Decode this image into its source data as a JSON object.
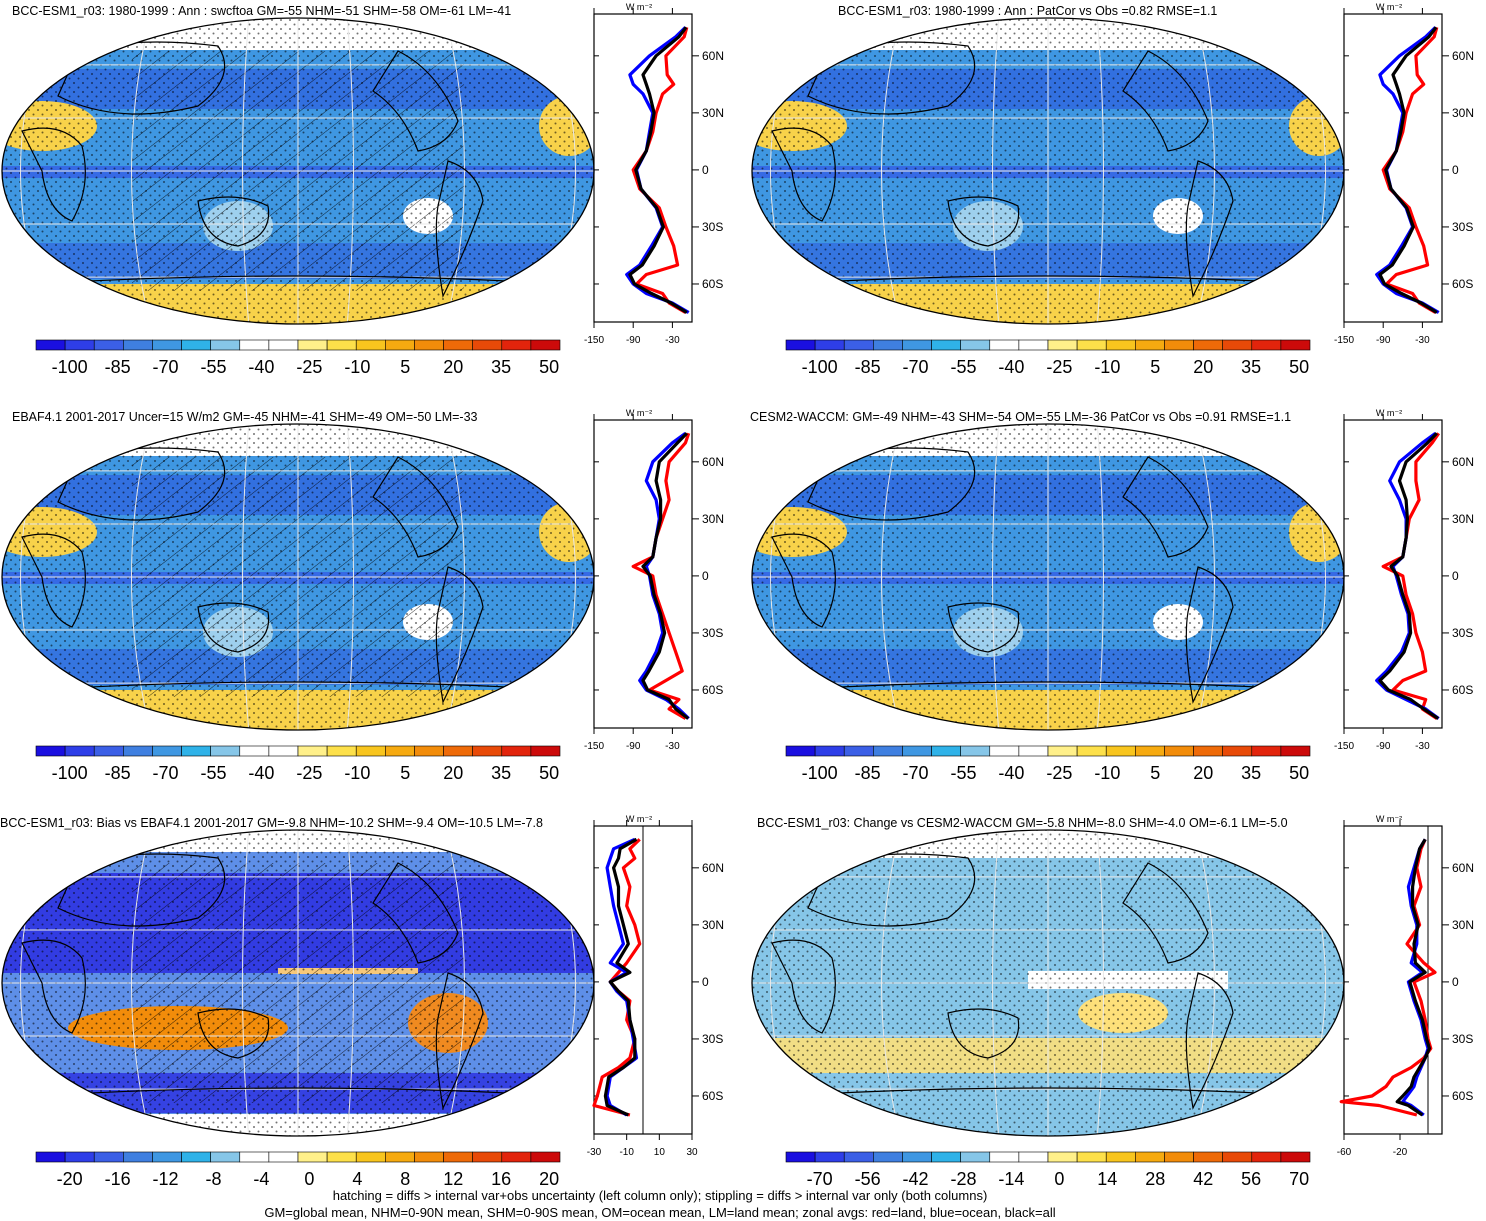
{
  "figure": {
    "footer": [
      "hatching = diffs > internal var+obs uncertainty (left column only); stippling = diffs > internal var only (both columns)",
      "GM=global mean, NHM=0-90N mean, SHM=0-90S mean, OM=ocean mean, LM=land mean; zonal avgs: red=land, blue=ocean, black=all"
    ],
    "lat_ticks": [
      "60N",
      "30N",
      "0",
      "30S",
      "60S"
    ],
    "zonal_units": "W m⁻²"
  },
  "chart_data": [
    {
      "type": "heatmap",
      "title": "BCC-ESM1_r03: 1980-1999 : Ann : swcftoa GM=-55 NHM=-51 SHM=-58 OM=-61 LM=-41",
      "colorbar_labels": [
        "-100",
        "-85",
        "-70",
        "-55",
        "-40",
        "-25",
        "-10",
        "5",
        "20",
        "35",
        "50"
      ],
      "colorbar_scheme": "abs",
      "hatching": true,
      "zonal_xticks": [
        "-150",
        "-90",
        "-30"
      ],
      "zonal_xlim": [
        -150,
        0
      ],
      "series": [
        {
          "name": "land",
          "color": "#ff0000",
          "lat": [
            75,
            70,
            60,
            50,
            45,
            40,
            30,
            20,
            10,
            0,
            -10,
            -20,
            -30,
            -40,
            -50,
            -55,
            -60,
            -65,
            -70,
            -75
          ],
          "values": [
            -8,
            -12,
            -40,
            -38,
            -28,
            -45,
            -55,
            -60,
            -70,
            -90,
            -80,
            -50,
            -40,
            -28,
            -22,
            -70,
            -85,
            -45,
            -35,
            -10
          ]
        },
        {
          "name": "ocean",
          "color": "#0000ff",
          "lat": [
            75,
            70,
            60,
            50,
            45,
            40,
            30,
            20,
            10,
            0,
            -10,
            -20,
            -30,
            -40,
            -50,
            -55,
            -60,
            -65,
            -70,
            -75
          ],
          "values": [
            -10,
            -25,
            -65,
            -95,
            -90,
            -75,
            -60,
            -65,
            -70,
            -85,
            -78,
            -55,
            -45,
            -62,
            -80,
            -100,
            -90,
            -70,
            -30,
            -5
          ]
        },
        {
          "name": "all",
          "color": "#000000",
          "lat": [
            75,
            70,
            60,
            50,
            45,
            40,
            30,
            20,
            10,
            0,
            -10,
            -20,
            -30,
            -40,
            -50,
            -55,
            -60,
            -65,
            -70,
            -75
          ],
          "values": [
            -9,
            -20,
            -55,
            -75,
            -70,
            -65,
            -58,
            -63,
            -70,
            -86,
            -78,
            -54,
            -44,
            -58,
            -76,
            -95,
            -88,
            -62,
            -32,
            -8
          ]
        }
      ]
    },
    {
      "type": "heatmap",
      "title": "BCC-ESM1_r03: 1980-1999 : Ann : PatCor vs Obs =0.82 RMSE=1.1",
      "colorbar_labels": [
        "-100",
        "-85",
        "-70",
        "-55",
        "-40",
        "-25",
        "-10",
        "5",
        "20",
        "35",
        "50"
      ],
      "colorbar_scheme": "abs",
      "hatching": false,
      "zonal_xticks": [
        "-150",
        "-90",
        "-30"
      ],
      "zonal_xlim": [
        -150,
        0
      ],
      "series": [
        {
          "name": "land",
          "color": "#ff0000",
          "lat": [
            75,
            70,
            60,
            50,
            45,
            40,
            30,
            20,
            10,
            0,
            -10,
            -20,
            -30,
            -40,
            -50,
            -55,
            -60,
            -65,
            -70,
            -75
          ],
          "values": [
            -8,
            -12,
            -40,
            -38,
            -28,
            -45,
            -55,
            -60,
            -70,
            -90,
            -80,
            -50,
            -40,
            -28,
            -22,
            -70,
            -85,
            -45,
            -35,
            -10
          ]
        },
        {
          "name": "ocean",
          "color": "#0000ff",
          "lat": [
            75,
            70,
            60,
            50,
            45,
            40,
            30,
            20,
            10,
            0,
            -10,
            -20,
            -30,
            -40,
            -50,
            -55,
            -60,
            -65,
            -70,
            -75
          ],
          "values": [
            -10,
            -25,
            -65,
            -95,
            -90,
            -75,
            -60,
            -65,
            -70,
            -85,
            -78,
            -55,
            -45,
            -62,
            -80,
            -100,
            -90,
            -70,
            -30,
            -5
          ]
        },
        {
          "name": "all",
          "color": "#000000",
          "lat": [
            75,
            70,
            60,
            50,
            45,
            40,
            30,
            20,
            10,
            0,
            -10,
            -20,
            -30,
            -40,
            -50,
            -55,
            -60,
            -65,
            -70,
            -75
          ],
          "values": [
            -9,
            -20,
            -55,
            -75,
            -70,
            -65,
            -58,
            -63,
            -70,
            -86,
            -78,
            -54,
            -44,
            -58,
            -76,
            -95,
            -88,
            -62,
            -32,
            -8
          ]
        }
      ]
    },
    {
      "type": "heatmap",
      "title": "EBAF4.1 2001-2017 Uncer=15 W/m2 GM=-45 NHM=-41 SHM=-49 OM=-50 LM=-33",
      "colorbar_labels": [
        "-100",
        "-85",
        "-70",
        "-55",
        "-40",
        "-25",
        "-10",
        "5",
        "20",
        "35",
        "50"
      ],
      "colorbar_scheme": "abs",
      "hatching": true,
      "zonal_xticks": [
        "-150",
        "-90",
        "-30"
      ],
      "zonal_xlim": [
        -150,
        0
      ],
      "series": [
        {
          "name": "land",
          "color": "#ff0000",
          "lat": [
            75,
            70,
            60,
            50,
            40,
            30,
            20,
            10,
            5,
            0,
            -10,
            -20,
            -30,
            -40,
            -50,
            -55,
            -60,
            -65,
            -70,
            -75
          ],
          "values": [
            -5,
            -10,
            -35,
            -40,
            -35,
            -45,
            -55,
            -60,
            -90,
            -60,
            -55,
            -45,
            -35,
            -25,
            -15,
            -40,
            -65,
            -20,
            -35,
            -10
          ]
        },
        {
          "name": "ocean",
          "color": "#0000ff",
          "lat": [
            75,
            70,
            60,
            50,
            40,
            30,
            20,
            10,
            5,
            0,
            -10,
            -20,
            -30,
            -40,
            -50,
            -55,
            -60,
            -65,
            -70,
            -75
          ],
          "values": [
            -10,
            -30,
            -60,
            -70,
            -55,
            -50,
            -55,
            -60,
            -70,
            -65,
            -60,
            -50,
            -45,
            -55,
            -70,
            -80,
            -70,
            -40,
            -20,
            -5
          ]
        },
        {
          "name": "all",
          "color": "#000000",
          "lat": [
            75,
            70,
            60,
            50,
            40,
            30,
            20,
            10,
            5,
            0,
            -10,
            -20,
            -30,
            -40,
            -50,
            -55,
            -60,
            -65,
            -70,
            -75
          ],
          "values": [
            -8,
            -22,
            -50,
            -55,
            -48,
            -48,
            -55,
            -60,
            -75,
            -64,
            -58,
            -48,
            -42,
            -50,
            -66,
            -75,
            -68,
            -35,
            -25,
            -6
          ]
        }
      ]
    },
    {
      "type": "heatmap",
      "title": "CESM2-WACCM: GM=-49 NHM=-43 SHM=-54 OM=-55 LM=-36 PatCor vs Obs =0.91 RMSE=1.1",
      "colorbar_labels": [
        "-100",
        "-85",
        "-70",
        "-55",
        "-40",
        "-25",
        "-10",
        "5",
        "20",
        "35",
        "50"
      ],
      "colorbar_scheme": "abs",
      "hatching": false,
      "zonal_xticks": [
        "-150",
        "-90",
        "-30"
      ],
      "zonal_xlim": [
        -150,
        0
      ],
      "series": [
        {
          "name": "land",
          "color": "#ff0000",
          "lat": [
            75,
            70,
            60,
            50,
            40,
            30,
            20,
            10,
            5,
            0,
            -10,
            -20,
            -30,
            -40,
            -50,
            -55,
            -60,
            -65,
            -70,
            -75
          ],
          "values": [
            -5,
            -15,
            -40,
            -40,
            -35,
            -50,
            -55,
            -60,
            -90,
            -60,
            -55,
            -45,
            -40,
            -30,
            -25,
            -60,
            -75,
            -25,
            -30,
            -8
          ]
        },
        {
          "name": "ocean",
          "color": "#0000ff",
          "lat": [
            75,
            70,
            60,
            50,
            40,
            30,
            20,
            10,
            5,
            0,
            -10,
            -20,
            -30,
            -40,
            -50,
            -55,
            -60,
            -65,
            -70,
            -75
          ],
          "values": [
            -10,
            -30,
            -65,
            -80,
            -65,
            -55,
            -55,
            -60,
            -75,
            -70,
            -62,
            -52,
            -50,
            -62,
            -85,
            -100,
            -85,
            -55,
            -25,
            -5
          ]
        },
        {
          "name": "all",
          "color": "#000000",
          "lat": [
            75,
            70,
            60,
            50,
            40,
            30,
            20,
            10,
            5,
            0,
            -10,
            -20,
            -30,
            -40,
            -50,
            -55,
            -60,
            -65,
            -70,
            -75
          ],
          "values": [
            -8,
            -22,
            -55,
            -65,
            -55,
            -53,
            -55,
            -60,
            -78,
            -68,
            -60,
            -50,
            -48,
            -58,
            -80,
            -95,
            -82,
            -48,
            -28,
            -6
          ]
        }
      ]
    },
    {
      "type": "heatmap",
      "title": "BCC-ESM1_r03: Bias vs EBAF4.1 2001-2017 GM=-9.8 NHM=-10.2 SHM=-9.4 OM=-10.5 LM=-7.8",
      "colorbar_labels": [
        "-20",
        "-16",
        "-12",
        "-8",
        "-4",
        "0",
        "4",
        "8",
        "12",
        "16",
        "20"
      ],
      "colorbar_scheme": "diff20",
      "hatching": true,
      "zonal_xticks": [
        "-30",
        "-10",
        "10",
        "30"
      ],
      "zonal_xlim": [
        -30,
        30
      ],
      "zero_line": 0,
      "series": [
        {
          "name": "land",
          "color": "#ff0000",
          "lat": [
            75,
            70,
            65,
            60,
            50,
            40,
            30,
            20,
            10,
            5,
            0,
            -5,
            -10,
            -20,
            -30,
            -40,
            -45,
            -50,
            -60,
            -65,
            -70
          ],
          "values": [
            -2,
            -8,
            -5,
            -12,
            -8,
            -10,
            -5,
            -2,
            -10,
            -15,
            -20,
            -15,
            -8,
            -10,
            -5,
            -8,
            -15,
            -25,
            -28,
            -30,
            -8
          ]
        },
        {
          "name": "ocean",
          "color": "#0000ff",
          "lat": [
            75,
            70,
            65,
            60,
            50,
            40,
            30,
            20,
            10,
            5,
            0,
            -5,
            -10,
            -20,
            -30,
            -40,
            -45,
            -50,
            -60,
            -65,
            -70
          ],
          "values": [
            -5,
            -18,
            -20,
            -22,
            -20,
            -18,
            -15,
            -12,
            -20,
            -10,
            -20,
            -16,
            -10,
            -8,
            -6,
            -4,
            -12,
            -20,
            -22,
            -20,
            -10
          ]
        },
        {
          "name": "all",
          "color": "#000000",
          "lat": [
            75,
            70,
            65,
            60,
            50,
            40,
            30,
            20,
            10,
            5,
            0,
            -5,
            -10,
            -20,
            -30,
            -40,
            -45,
            -50,
            -60,
            -65,
            -70
          ],
          "values": [
            -4,
            -14,
            -15,
            -18,
            -15,
            -15,
            -12,
            -9,
            -16,
            -8,
            -20,
            -15,
            -9,
            -8,
            -5,
            -5,
            -12,
            -21,
            -23,
            -22,
            -9
          ]
        }
      ]
    },
    {
      "type": "heatmap",
      "title": "BCC-ESM1_r03: Change vs CESM2-WACCM GM=-5.8 NHM=-8.0 SHM=-4.0 OM=-6.1 LM=-5.0",
      "colorbar_labels": [
        "-70",
        "-56",
        "-42",
        "-28",
        "-14",
        "0",
        "14",
        "28",
        "42",
        "56",
        "70"
      ],
      "colorbar_scheme": "diff70",
      "hatching": false,
      "zonal_xticks": [
        "-60",
        "-20"
      ],
      "zonal_xlim": [
        -60,
        10
      ],
      "zero_line": 0,
      "series": [
        {
          "name": "land",
          "color": "#ff0000",
          "lat": [
            75,
            70,
            60,
            50,
            40,
            30,
            20,
            10,
            5,
            0,
            -10,
            -20,
            -30,
            -35,
            -40,
            -45,
            -50,
            -55,
            -60,
            -63,
            -65,
            -70
          ],
          "values": [
            -2,
            -5,
            -8,
            -5,
            -10,
            -6,
            -15,
            -3,
            5,
            -10,
            -5,
            -2,
            0,
            2,
            -3,
            -12,
            -25,
            -30,
            -40,
            -62,
            -35,
            -8
          ]
        },
        {
          "name": "ocean",
          "color": "#0000ff",
          "lat": [
            75,
            70,
            60,
            50,
            40,
            30,
            20,
            10,
            5,
            0,
            -10,
            -20,
            -30,
            -35,
            -40,
            -45,
            -50,
            -55,
            -60,
            -63,
            -65,
            -70
          ],
          "values": [
            -2,
            -6,
            -10,
            -14,
            -12,
            -8,
            -8,
            -12,
            -4,
            -14,
            -10,
            -5,
            -2,
            0,
            -2,
            -5,
            -8,
            -10,
            -15,
            -18,
            -12,
            -3
          ]
        },
        {
          "name": "all",
          "color": "#000000",
          "lat": [
            75,
            70,
            60,
            50,
            40,
            30,
            20,
            10,
            5,
            0,
            -10,
            -20,
            -30,
            -35,
            -40,
            -45,
            -50,
            -55,
            -60,
            -63,
            -65,
            -70
          ],
          "values": [
            -2,
            -6,
            -9,
            -11,
            -11,
            -7,
            -10,
            -9,
            -2,
            -13,
            -9,
            -4,
            -1,
            1,
            -2,
            -6,
            -10,
            -12,
            -18,
            -22,
            -14,
            -4
          ]
        }
      ]
    }
  ]
}
